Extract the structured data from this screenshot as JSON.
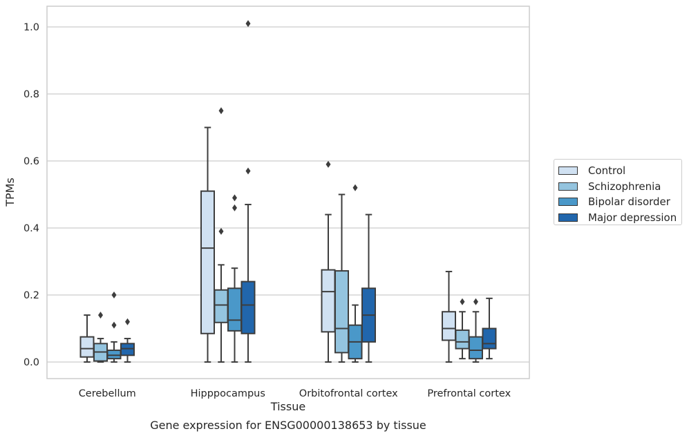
{
  "chart_data": {
    "type": "box",
    "title": "",
    "xlabel": "Tissue",
    "ylabel": "TPMs",
    "caption": "Gene expression for ENSG00000138653 by tissue",
    "ylim": [
      -0.05,
      1.06
    ],
    "yticks": [
      0.0,
      0.2,
      0.4,
      0.6,
      0.8,
      1.0
    ],
    "ytick_labels": [
      "0.0",
      "0.2",
      "0.4",
      "0.6",
      "0.8",
      "1.0"
    ],
    "grid": "horizontal",
    "legend_placement": "right",
    "categories": [
      "Cerebellum",
      "Hipppocampus",
      "Orbitofrontal cortex",
      "Prefrontal cortex"
    ],
    "series": [
      {
        "name": "Control",
        "color": "#d0e1f2",
        "boxes": [
          {
            "whislo": 0.0,
            "q1": 0.015,
            "median": 0.04,
            "q3": 0.075,
            "whishi": 0.14,
            "fliers": []
          },
          {
            "whislo": 0.0,
            "q1": 0.085,
            "median": 0.34,
            "q3": 0.51,
            "whishi": 0.7,
            "fliers": []
          },
          {
            "whislo": 0.0,
            "q1": 0.09,
            "median": 0.21,
            "q3": 0.275,
            "whishi": 0.44,
            "fliers": [
              0.59
            ]
          },
          {
            "whislo": 0.0,
            "q1": 0.065,
            "median": 0.1,
            "q3": 0.15,
            "whishi": 0.27,
            "fliers": []
          }
        ]
      },
      {
        "name": "Schizophrenia",
        "color": "#94c4df",
        "boxes": [
          {
            "whislo": 0.0,
            "q1": 0.003,
            "median": 0.03,
            "q3": 0.055,
            "whishi": 0.07,
            "fliers": [
              0.14
            ]
          },
          {
            "whislo": 0.0,
            "q1": 0.118,
            "median": 0.17,
            "q3": 0.215,
            "whishi": 0.29,
            "fliers": [
              0.39,
              0.75
            ]
          },
          {
            "whislo": 0.0,
            "q1": 0.028,
            "median": 0.1,
            "q3": 0.272,
            "whishi": 0.5,
            "fliers": []
          },
          {
            "whislo": 0.01,
            "q1": 0.04,
            "median": 0.06,
            "q3": 0.095,
            "whishi": 0.15,
            "fliers": [
              0.18
            ]
          }
        ]
      },
      {
        "name": "Bipolar disorder",
        "color": "#4a98c9",
        "boxes": [
          {
            "whislo": 0.0,
            "q1": 0.01,
            "median": 0.02,
            "q3": 0.035,
            "whishi": 0.06,
            "fliers": [
              0.11,
              0.2
            ]
          },
          {
            "whislo": 0.0,
            "q1": 0.093,
            "median": 0.125,
            "q3": 0.22,
            "whishi": 0.28,
            "fliers": [
              0.46,
              0.49
            ]
          },
          {
            "whislo": 0.0,
            "q1": 0.01,
            "median": 0.06,
            "q3": 0.11,
            "whishi": 0.17,
            "fliers": [
              0.52
            ]
          },
          {
            "whislo": 0.0,
            "q1": 0.01,
            "median": 0.035,
            "q3": 0.075,
            "whishi": 0.15,
            "fliers": [
              0.18
            ]
          }
        ]
      },
      {
        "name": "Major depression",
        "color": "#2166ac",
        "boxes": [
          {
            "whislo": 0.0,
            "q1": 0.02,
            "median": 0.04,
            "q3": 0.055,
            "whishi": 0.07,
            "fliers": [
              0.12
            ]
          },
          {
            "whislo": 0.0,
            "q1": 0.085,
            "median": 0.17,
            "q3": 0.24,
            "whishi": 0.47,
            "fliers": [
              0.57,
              1.01
            ]
          },
          {
            "whislo": 0.0,
            "q1": 0.06,
            "median": 0.14,
            "q3": 0.22,
            "whishi": 0.44,
            "fliers": []
          },
          {
            "whislo": 0.01,
            "q1": 0.04,
            "median": 0.055,
            "q3": 0.1,
            "whishi": 0.19,
            "fliers": []
          }
        ]
      }
    ]
  }
}
